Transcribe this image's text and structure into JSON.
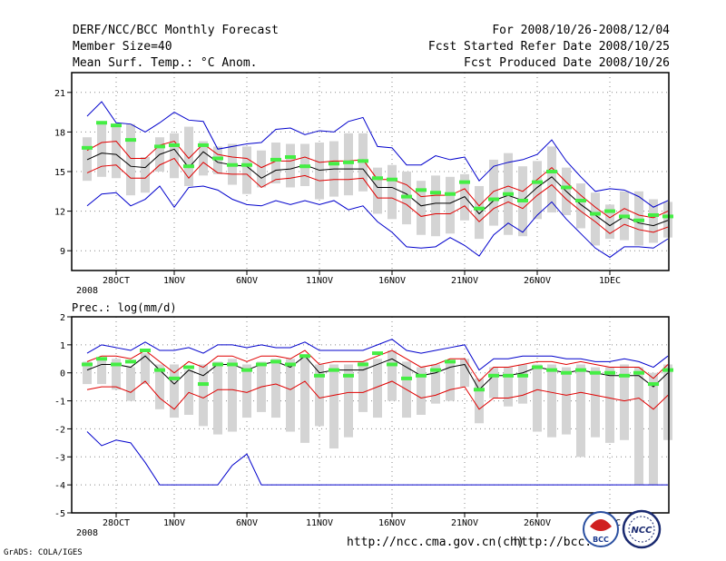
{
  "header": {
    "title": "DERF/NCC/BCC Monthly Forecast",
    "member_size": "Member Size=40",
    "variable": "Mean Surf. Temp.: °C Anom.",
    "period": "For 2008/10/26-2008/12/04",
    "started": "Fcst Started Refer Date 2008/10/25",
    "produced": "Fcst Produced Date 2008/10/26"
  },
  "footer": {
    "url1": "http://ncc.cma.gov.cn(ch)",
    "url2": "http://bcc.",
    "grads": "GrADS: COLA/IGES",
    "logo1_text": "BCC",
    "logo2_text": "NCC"
  },
  "colors": {
    "mean": "#000000",
    "spread": "#e00000",
    "extreme": "#0000cc",
    "bar": "#d4d4d4",
    "obs": "#44ee44",
    "grid": "#888888"
  },
  "chart_data": [
    {
      "type": "line",
      "title": "Mean Surf. Temp.: °C Anom.",
      "x_ticks": [
        "28OCT",
        "1NOV",
        "6NOV",
        "11NOV",
        "16NOV",
        "21NOV",
        "26NOV",
        "1DEC"
      ],
      "x_tick_days": [
        2,
        6,
        11,
        16,
        21,
        26,
        31,
        36
      ],
      "x_sub": "2008",
      "ylim": [
        7.5,
        22.5
      ],
      "yticks": [
        9,
        12,
        15,
        18,
        21
      ],
      "series": [
        {
          "name": "ensemble mean",
          "values": [
            15.9,
            16.4,
            16.3,
            15.4,
            15.3,
            16.3,
            16.7,
            15.3,
            16.5,
            15.7,
            15.5,
            15.4,
            14.5,
            15.1,
            15.2,
            15.5,
            15.1,
            15.2,
            15.2,
            15.2,
            13.8,
            13.8,
            13.3,
            12.4,
            12.6,
            12.6,
            13.1,
            11.8,
            12.8,
            13.2,
            12.8,
            13.8,
            14.6,
            13.5,
            12.5,
            11.7,
            10.9,
            11.6,
            11.1,
            10.9,
            11.3
          ]
        },
        {
          "name": "mean + spread",
          "values": [
            16.6,
            17.2,
            17.3,
            16.0,
            16.0,
            17.0,
            17.3,
            16.0,
            17.1,
            16.3,
            16.1,
            16.0,
            15.3,
            15.8,
            15.8,
            16.1,
            15.7,
            15.8,
            15.8,
            15.9,
            14.4,
            14.4,
            14.0,
            13.1,
            13.2,
            13.2,
            13.7,
            12.4,
            13.5,
            13.9,
            13.5,
            14.4,
            15.3,
            14.2,
            13.2,
            12.3,
            11.5,
            12.2,
            11.7,
            11.5,
            12.0
          ]
        },
        {
          "name": "mean - spread",
          "values": [
            14.9,
            15.4,
            15.5,
            14.5,
            14.5,
            15.5,
            16.0,
            14.5,
            15.7,
            14.9,
            14.8,
            14.8,
            13.8,
            14.4,
            14.5,
            14.7,
            14.3,
            14.4,
            14.4,
            14.5,
            13.0,
            13.0,
            12.5,
            11.6,
            11.8,
            11.8,
            12.4,
            11.2,
            12.2,
            12.7,
            12.2,
            13.2,
            14.0,
            12.9,
            12.0,
            11.2,
            10.3,
            11.0,
            10.6,
            10.4,
            10.8
          ]
        },
        {
          "name": "ensemble max",
          "values": [
            19.2,
            20.3,
            18.7,
            18.6,
            18.0,
            18.7,
            19.5,
            18.9,
            18.8,
            16.7,
            16.9,
            17.1,
            17.2,
            18.2,
            18.3,
            17.8,
            18.1,
            18.0,
            18.8,
            19.1,
            16.9,
            16.8,
            15.5,
            15.5,
            16.2,
            15.9,
            16.1,
            14.3,
            15.4,
            15.7,
            15.9,
            16.3,
            17.4,
            15.8,
            14.6,
            13.5,
            13.7,
            13.6,
            13.1,
            12.3,
            12.8
          ]
        },
        {
          "name": "ensemble min",
          "values": [
            12.4,
            13.3,
            13.4,
            12.4,
            12.9,
            13.9,
            12.3,
            13.8,
            13.9,
            13.6,
            12.9,
            12.5,
            12.4,
            12.8,
            12.5,
            12.8,
            12.5,
            12.8,
            12.1,
            12.4,
            11.2,
            10.4,
            9.3,
            9.2,
            9.3,
            10.0,
            9.4,
            8.6,
            10.2,
            11.1,
            10.4,
            11.7,
            12.7,
            11.4,
            10.3,
            9.2,
            8.5,
            9.3,
            9.3,
            9.2,
            9.9
          ]
        },
        {
          "name": "observed",
          "values": [
            16.8,
            18.7,
            18.5,
            17.4,
            null,
            16.9,
            17.0,
            15.4,
            17.0,
            16.0,
            15.5,
            15.5,
            null,
            15.9,
            16.1,
            15.4,
            null,
            15.6,
            15.7,
            15.8,
            14.5,
            14.4,
            13.1,
            13.6,
            13.4,
            13.3,
            14.2,
            12.2,
            12.9,
            13.3,
            12.8,
            14.2,
            15.0,
            13.8,
            12.8,
            11.8,
            12.0,
            11.6,
            11.3,
            11.7,
            11.6
          ]
        }
      ],
      "bars_top": [
        17.6,
        18.6,
        18.6,
        18.6,
        16.1,
        17.6,
        17.9,
        18.4,
        17.3,
        16.9,
        17.1,
        16.9,
        16.6,
        17.2,
        17.1,
        17.1,
        17.2,
        17.3,
        17.9,
        17.9,
        15.3,
        15.5,
        15.0,
        14.3,
        14.7,
        14.6,
        14.8,
        13.9,
        15.9,
        16.4,
        15.4,
        15.8,
        16.9,
        15.3,
        14.1,
        13.4,
        12.5,
        13.5,
        13.5,
        12.9,
        12.7
      ],
      "bars_bottom": [
        14.3,
        14.6,
        14.5,
        13.2,
        13.4,
        15.0,
        14.5,
        13.9,
        14.7,
        14.8,
        14.0,
        13.3,
        13.8,
        14.1,
        13.8,
        13.9,
        12.9,
        13.1,
        13.2,
        13.5,
        11.8,
        11.4,
        11.0,
        10.2,
        10.1,
        10.3,
        11.3,
        9.9,
        10.9,
        10.2,
        10.1,
        11.4,
        11.9,
        11.7,
        10.7,
        9.4,
        9.9,
        9.8,
        9.4,
        9.6,
        10.0
      ]
    },
    {
      "type": "line",
      "title": "Prec.: log(mm/d)",
      "x_ticks": [
        "28OCT",
        "1NOV",
        "6NOV",
        "11NOV",
        "16NOV",
        "21NOV",
        "26NOV",
        "1DEC"
      ],
      "x_tick_days": [
        2,
        6,
        11,
        16,
        21,
        26,
        31,
        36
      ],
      "x_sub": "2008",
      "ylim": [
        -5,
        2
      ],
      "yticks": [
        -5,
        -4,
        -3,
        -2,
        -1,
        0,
        1,
        2
      ],
      "series": [
        {
          "name": "ensemble mean",
          "values": [
            0.1,
            0.3,
            0.3,
            0.2,
            0.6,
            0.1,
            -0.4,
            0.1,
            -0.1,
            0.3,
            0.3,
            0.1,
            0.3,
            0.4,
            0.2,
            0.6,
            0.0,
            0.1,
            0.1,
            0.1,
            0.3,
            0.5,
            0.2,
            -0.1,
            0.0,
            0.2,
            0.3,
            -0.6,
            -0.1,
            -0.1,
            0.0,
            0.2,
            0.1,
            0.0,
            0.1,
            0.0,
            -0.1,
            -0.1,
            -0.1,
            -0.5,
            0.0
          ]
        },
        {
          "name": "mean + spread",
          "values": [
            0.4,
            0.6,
            0.6,
            0.5,
            0.8,
            0.4,
            0.0,
            0.4,
            0.2,
            0.6,
            0.6,
            0.4,
            0.6,
            0.6,
            0.5,
            0.8,
            0.3,
            0.4,
            0.4,
            0.4,
            0.6,
            0.8,
            0.5,
            0.2,
            0.3,
            0.5,
            0.5,
            -0.3,
            0.2,
            0.2,
            0.3,
            0.4,
            0.4,
            0.3,
            0.4,
            0.3,
            0.2,
            0.2,
            0.2,
            -0.2,
            0.3
          ]
        },
        {
          "name": "mean - spread",
          "values": [
            -0.6,
            -0.5,
            -0.5,
            -0.7,
            -0.3,
            -0.9,
            -1.3,
            -0.7,
            -0.9,
            -0.6,
            -0.6,
            -0.7,
            -0.5,
            -0.4,
            -0.6,
            -0.3,
            -0.9,
            -0.8,
            -0.7,
            -0.7,
            -0.5,
            -0.3,
            -0.6,
            -0.9,
            -0.8,
            -0.6,
            -0.5,
            -1.3,
            -0.9,
            -0.9,
            -0.8,
            -0.6,
            -0.7,
            -0.8,
            -0.7,
            -0.8,
            -0.9,
            -1.0,
            -0.9,
            -1.3,
            -0.8
          ]
        },
        {
          "name": "ensemble max",
          "values": [
            0.7,
            1.0,
            0.9,
            0.8,
            1.1,
            0.8,
            0.8,
            0.9,
            0.7,
            1.0,
            1.0,
            0.9,
            1.0,
            0.9,
            0.9,
            1.1,
            0.8,
            0.8,
            0.8,
            0.8,
            1.0,
            1.2,
            0.8,
            0.7,
            0.8,
            0.9,
            1.0,
            0.1,
            0.5,
            0.5,
            0.6,
            0.6,
            0.6,
            0.5,
            0.5,
            0.4,
            0.4,
            0.5,
            0.4,
            0.2,
            0.6
          ]
        },
        {
          "name": "ensemble min",
          "values": [
            -2.1,
            -2.6,
            -2.4,
            -2.5,
            -3.2,
            -4.0,
            -4.0,
            -4.0,
            -4.0,
            -4.0,
            -3.3,
            -2.9,
            -4.0,
            -4.0,
            -4.0,
            -4.0,
            -4.0,
            -4.0,
            -4.0,
            -4.0,
            -4.0,
            -4.0,
            -4.0,
            -4.0,
            -4.0,
            -4.0,
            -4.0,
            -4.0,
            -4.0,
            -4.0,
            -4.0,
            -4.0,
            -4.0,
            -4.0,
            -4.0,
            -4.0,
            -4.0,
            -4.0,
            -4.0,
            -4.0,
            -4.0
          ]
        },
        {
          "name": "observed",
          "values": [
            0.3,
            0.5,
            0.3,
            0.4,
            0.8,
            0.1,
            -0.2,
            0.2,
            -0.4,
            0.3,
            0.3,
            0.1,
            0.3,
            0.4,
            0.3,
            0.6,
            -0.1,
            0.1,
            -0.1,
            0.3,
            0.7,
            0.3,
            -0.2,
            -0.1,
            0.1,
            0.4,
            null,
            -0.6,
            -0.1,
            -0.1,
            -0.1,
            0.2,
            0.1,
            0.0,
            0.1,
            0.0,
            0.0,
            -0.1,
            0.0,
            -0.4,
            0.1
          ]
        }
      ],
      "bars_top": [
        0.4,
        0.5,
        0.5,
        0.2,
        0.7,
        0.3,
        0.3,
        0.1,
        0.3,
        0.4,
        0.5,
        0.3,
        0.4,
        0.5,
        0.5,
        0.6,
        0.3,
        0.3,
        0.3,
        0.4,
        0.5,
        0.8,
        0.4,
        0.2,
        0.3,
        0.4,
        0.5,
        -0.2,
        0.2,
        0.2,
        0.3,
        0.3,
        0.3,
        0.2,
        0.3,
        0.2,
        0.2,
        0.3,
        0.2,
        0.0,
        0.3
      ],
      "bars_bottom": [
        -0.4,
        -0.4,
        -0.6,
        -1.0,
        -0.4,
        -1.3,
        -1.6,
        -1.5,
        -1.9,
        -2.2,
        -2.1,
        -1.6,
        -1.4,
        -1.6,
        -2.1,
        -2.5,
        -1.9,
        -2.7,
        -2.3,
        -1.4,
        -1.6,
        -1.0,
        -1.6,
        -1.5,
        -1.1,
        -1.0,
        -0.5,
        -1.8,
        -0.9,
        -1.2,
        -1.1,
        -2.1,
        -2.3,
        -2.2,
        -3.0,
        -2.3,
        -2.5,
        -2.4,
        -4.0,
        -4.0,
        -2.4
      ]
    }
  ]
}
